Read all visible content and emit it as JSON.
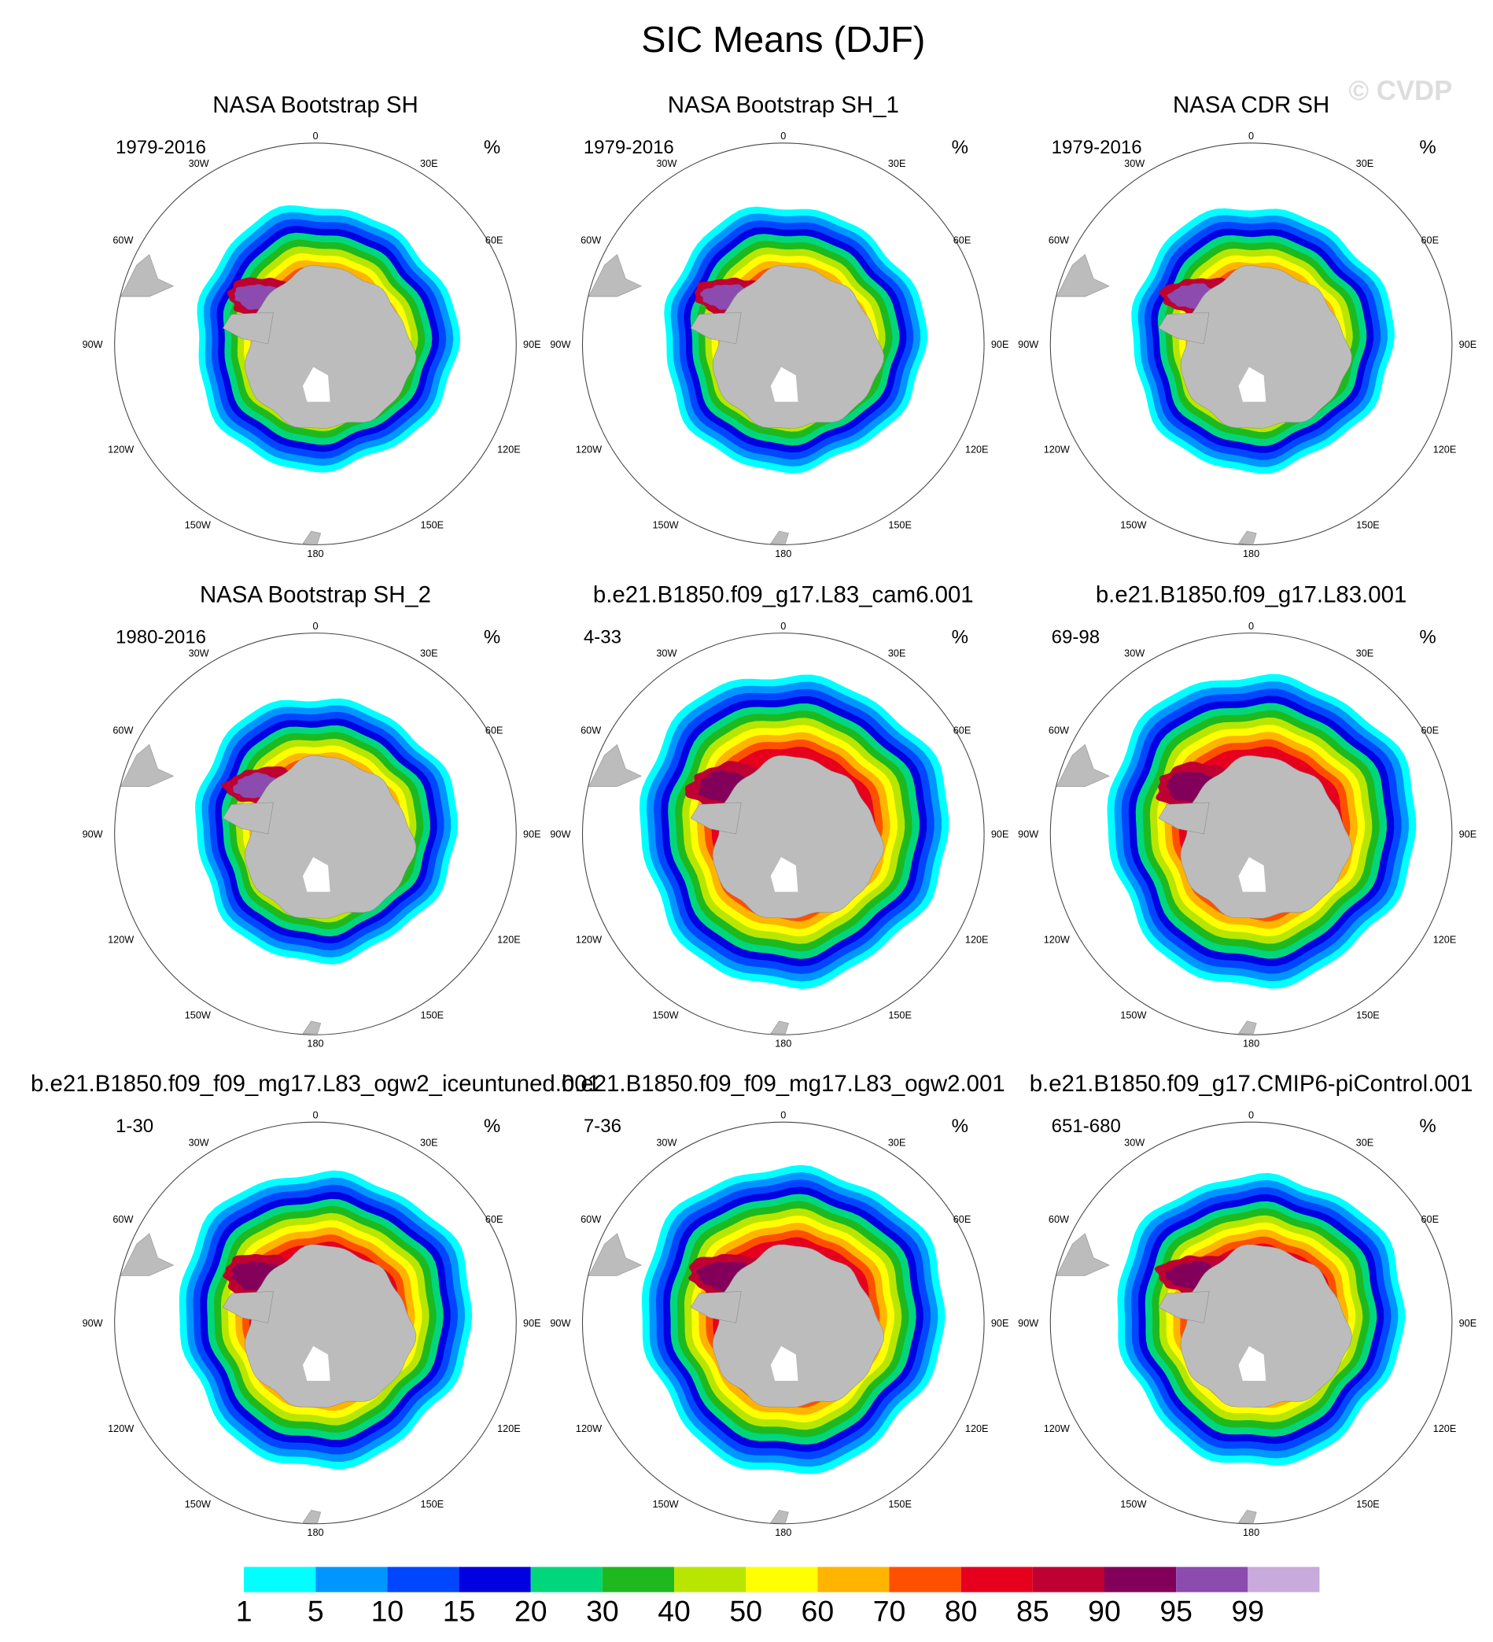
{
  "title": "SIC Means (DJF)",
  "watermark": "© CVDP",
  "longitude_labels": [
    "0",
    "30E",
    "60E",
    "90E",
    "120E",
    "150E",
    "180",
    "150W",
    "120W",
    "90W",
    "60W",
    "30W"
  ],
  "panels": [
    {
      "title": "NASA Bootstrap SH",
      "period": "1979-2016",
      "unit": "%"
    },
    {
      "title": "NASA Bootstrap SH_1",
      "period": "1979-2016",
      "unit": "%"
    },
    {
      "title": "NASA CDR SH",
      "period": "1979-2016",
      "unit": "%"
    },
    {
      "title": "NASA Bootstrap SH_2",
      "period": "1980-2016",
      "unit": "%"
    },
    {
      "title": "b.e21.B1850.f09_g17.L83_cam6.001",
      "period": "4-33",
      "unit": "%"
    },
    {
      "title": "b.e21.B1850.f09_g17.L83.001",
      "period": "69-98",
      "unit": "%"
    },
    {
      "title": "b.e21.B1850.f09_f09_mg17.L83_ogw2_iceuntuned.001",
      "period": "1-30",
      "unit": "%"
    },
    {
      "title": "b.e21.B1850.f09_f09_mg17.L83_ogw2.001",
      "period": "7-36",
      "unit": "%"
    },
    {
      "title": "b.e21.B1850.f09_g17.CMIP6-piControl.001",
      "period": "651-680",
      "unit": "%"
    }
  ],
  "colorbar": {
    "labels": [
      "1",
      "5",
      "10",
      "15",
      "20",
      "30",
      "40",
      "50",
      "60",
      "70",
      "80",
      "85",
      "90",
      "95",
      "99"
    ],
    "colors": [
      "#00ffff",
      "#0096ff",
      "#0046ff",
      "#0000e1",
      "#00d77d",
      "#1eb91e",
      "#b9e600",
      "#ffff00",
      "#ffb400",
      "#ff5000",
      "#e6001e",
      "#be0032",
      "#82005a",
      "#8c4baf",
      "#c8aadc"
    ]
  }
}
